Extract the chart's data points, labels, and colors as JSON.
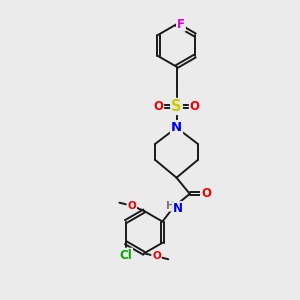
{
  "bg_color": "#ebebeb",
  "bond_color": "#1a1a1a",
  "bond_width": 1.4,
  "atom_colors": {
    "C": "#1a1a1a",
    "N": "#0000ee",
    "O": "#ee0000",
    "S": "#cccc00",
    "F": "#dd00dd",
    "Cl": "#00aa00",
    "H": "#777777"
  },
  "font_size": 8.5
}
